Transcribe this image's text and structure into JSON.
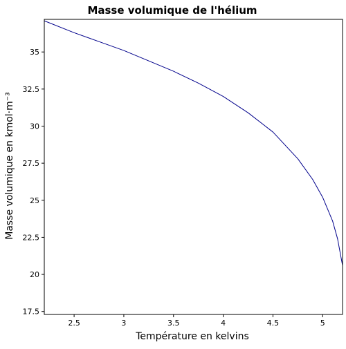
{
  "chart_data": {
    "type": "line",
    "title": "Masse volumique de l'hélium",
    "xlabel": "Température en kelvins",
    "ylabel": "Masse volumique en kmol·m⁻³",
    "xlim": [
      2.2,
      5.2
    ],
    "ylim": [
      17.3,
      37.2
    ],
    "xticks": [
      2.5,
      3,
      3.5,
      4,
      4.5,
      5
    ],
    "xtick_labels": [
      "2.5",
      "3",
      "3.5",
      "4",
      "4.5",
      "5"
    ],
    "yticks": [
      17.5,
      20,
      22.5,
      25,
      27.5,
      30,
      32.5,
      35
    ],
    "ytick_labels": [
      "17.5",
      "20",
      "22.5",
      "25",
      "27.5",
      "30",
      "32.5",
      "35"
    ],
    "grid": false,
    "series": [
      {
        "color": "#00008b",
        "x": [
          2.2,
          2.5,
          2.75,
          3.0,
          3.25,
          3.5,
          3.75,
          4.0,
          4.25,
          4.5,
          4.75,
          4.9,
          5.0,
          5.1,
          5.15,
          5.2
        ],
        "y": [
          37.1,
          36.3,
          35.7,
          35.1,
          34.4,
          33.7,
          32.9,
          32.0,
          30.9,
          29.6,
          27.8,
          26.4,
          25.2,
          23.6,
          22.4,
          20.6
        ]
      }
    ]
  }
}
